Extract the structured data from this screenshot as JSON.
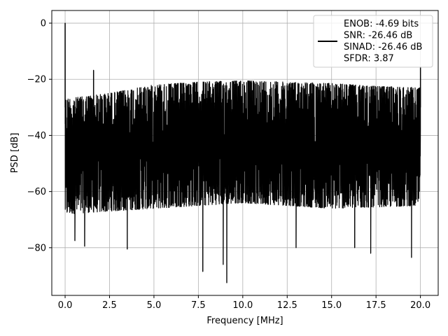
{
  "chart_data": {
    "type": "line",
    "xlabel": "Frequency [MHz]",
    "ylabel": "PSD [dB]",
    "xlim": [
      -0.75,
      21.0
    ],
    "ylim": [
      -97,
      4.5
    ],
    "x_ticks": [
      0.0,
      2.5,
      5.0,
      7.5,
      10.0,
      12.5,
      15.0,
      17.5,
      20.0
    ],
    "x_tick_labels": [
      "0.0",
      "2.5",
      "5.0",
      "7.5",
      "10.0",
      "12.5",
      "15.0",
      "17.5",
      "20.0"
    ],
    "y_ticks": [
      0,
      -20,
      -40,
      -60,
      -80
    ],
    "y_tick_labels": [
      "0",
      "−20",
      "−40",
      "−60",
      "−80"
    ],
    "grid": true,
    "legend_position": "top-right",
    "line_color": "#000000",
    "legend_lines": [
      "ENOB: -4.69 bits",
      "SNR: -26.46 dB",
      "SINAD: -26.46 dB",
      "SFDR: 3.87"
    ],
    "series": [
      {
        "x_range": [
          0.0,
          20.0
        ],
        "noise_floor_top_db": [
          [
            0.0,
            -27
          ],
          [
            2.5,
            -25
          ],
          [
            5.0,
            -22
          ],
          [
            7.5,
            -21
          ],
          [
            10.0,
            -20.5
          ],
          [
            12.5,
            -21
          ],
          [
            15.0,
            -21.5
          ],
          [
            17.5,
            -22.5
          ],
          [
            20.0,
            -23
          ]
        ],
        "noise_floor_bottom_db": [
          [
            0.0,
            -68
          ],
          [
            5.0,
            -66
          ],
          [
            10.0,
            -64
          ],
          [
            15.0,
            -66
          ],
          [
            20.0,
            -65
          ]
        ],
        "peaks": [
          {
            "x": 0.0,
            "y": 0.0
          },
          {
            "x": 1.6,
            "y": -16.8
          },
          {
            "x": 20.0,
            "y": -15.5
          }
        ],
        "dips": [
          {
            "x": 0.55,
            "y": -77.5
          },
          {
            "x": 1.1,
            "y": -79.5
          },
          {
            "x": 3.5,
            "y": -80.5
          },
          {
            "x": 7.75,
            "y": -88.5
          },
          {
            "x": 8.9,
            "y": -86.0
          },
          {
            "x": 9.1,
            "y": -92.5
          },
          {
            "x": 13.0,
            "y": -80.0
          },
          {
            "x": 16.3,
            "y": -80.0
          },
          {
            "x": 17.2,
            "y": -82.0
          },
          {
            "x": 19.5,
            "y": -83.5
          }
        ]
      }
    ]
  }
}
